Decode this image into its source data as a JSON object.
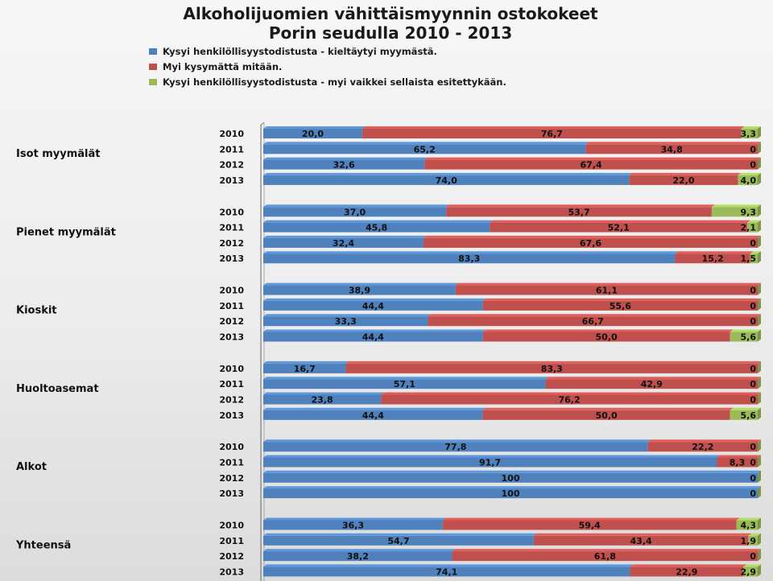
{
  "chart_data": {
    "type": "bar",
    "orientation": "horizontal",
    "stacked": "percent",
    "title_lines": [
      "Alkoholijuomien vähittäismyynnin ostokokeet",
      "Porin seudulla 2010 - 2013"
    ],
    "legend_position": "top",
    "series": [
      {
        "name": "Kysyi henkilöllisyystodistusta - kieltäytyi myymästä.",
        "color": "#4f81bd"
      },
      {
        "name": "Myi kysymättä mitään.",
        "color": "#c0504d"
      },
      {
        "name": "Kysyi henkilöllisyystodistusta - myi vaikkei sellaista esitettykään.",
        "color": "#9bbb59"
      }
    ],
    "groups": [
      {
        "label": "Isot myymälät",
        "rows": [
          {
            "year": "2010",
            "values": [
              20.0,
              76.7,
              3.3
            ],
            "labels": [
              "20,0",
              "76,7",
              "3,3"
            ]
          },
          {
            "year": "2011",
            "values": [
              65.2,
              34.8,
              0
            ],
            "labels": [
              "65,2",
              "34,8",
              "0"
            ]
          },
          {
            "year": "2012",
            "values": [
              32.6,
              67.4,
              0
            ],
            "labels": [
              "32,6",
              "67,4",
              "0"
            ]
          },
          {
            "year": "2013",
            "values": [
              74.0,
              22.0,
              4.0
            ],
            "labels": [
              "74,0",
              "22,0",
              "4,0"
            ]
          }
        ]
      },
      {
        "label": "Pienet myymälät",
        "rows": [
          {
            "year": "2010",
            "values": [
              37.0,
              53.7,
              9.3
            ],
            "labels": [
              "37,0",
              "53,7",
              "9,3"
            ]
          },
          {
            "year": "2011",
            "values": [
              45.8,
              52.1,
              2.1
            ],
            "labels": [
              "45,8",
              "52,1",
              "2,1"
            ]
          },
          {
            "year": "2012",
            "values": [
              32.4,
              67.6,
              0
            ],
            "labels": [
              "32,4",
              "67,6",
              "0"
            ]
          },
          {
            "year": "2013",
            "values": [
              83.3,
              15.2,
              1.5
            ],
            "labels": [
              "83,3",
              "15,2",
              "1,5"
            ]
          }
        ]
      },
      {
        "label": "Kioskit",
        "rows": [
          {
            "year": "2010",
            "values": [
              38.9,
              61.1,
              0
            ],
            "labels": [
              "38,9",
              "61,1",
              "0"
            ]
          },
          {
            "year": "2011",
            "values": [
              44.4,
              55.6,
              0
            ],
            "labels": [
              "44,4",
              "55,6",
              "0"
            ]
          },
          {
            "year": "2012",
            "values": [
              33.3,
              66.7,
              0
            ],
            "labels": [
              "33,3",
              "66,7",
              "0"
            ]
          },
          {
            "year": "2013",
            "values": [
              44.4,
              50.0,
              5.6
            ],
            "labels": [
              "44,4",
              "50,0",
              "5,6"
            ]
          }
        ]
      },
      {
        "label": "Huoltoasemat",
        "rows": [
          {
            "year": "2010",
            "values": [
              16.7,
              83.3,
              0
            ],
            "labels": [
              "16,7",
              "83,3",
              "0"
            ]
          },
          {
            "year": "2011",
            "values": [
              57.1,
              42.9,
              0
            ],
            "labels": [
              "57,1",
              "42,9",
              "0"
            ]
          },
          {
            "year": "2012",
            "values": [
              23.8,
              76.2,
              0
            ],
            "labels": [
              "23,8",
              "76,2",
              "0"
            ]
          },
          {
            "year": "2013",
            "values": [
              44.4,
              50.0,
              5.6
            ],
            "labels": [
              "44,4",
              "50,0",
              "5,6"
            ]
          }
        ]
      },
      {
        "label": "Alkot",
        "rows": [
          {
            "year": "2010",
            "values": [
              77.8,
              22.2,
              0
            ],
            "labels": [
              "77,8",
              "22,2",
              "0"
            ]
          },
          {
            "year": "2011",
            "values": [
              91.7,
              8.3,
              0
            ],
            "labels": [
              "91,7",
              "8,3",
              "0"
            ]
          },
          {
            "year": "2012",
            "values": [
              100,
              0,
              0
            ],
            "labels": [
              "100",
              "",
              "0"
            ]
          },
          {
            "year": "2013",
            "values": [
              100,
              0,
              0
            ],
            "labels": [
              "100",
              "",
              "0"
            ]
          }
        ]
      },
      {
        "label": "Yhteensä",
        "rows": [
          {
            "year": "2010",
            "values": [
              36.3,
              59.4,
              4.3
            ],
            "labels": [
              "36,3",
              "59,4",
              "4,3"
            ]
          },
          {
            "year": "2011",
            "values": [
              54.7,
              43.4,
              1.9
            ],
            "labels": [
              "54,7",
              "43,4",
              "1,9"
            ]
          },
          {
            "year": "2012",
            "values": [
              38.2,
              61.8,
              0
            ],
            "labels": [
              "38,2",
              "61,8",
              "0"
            ]
          },
          {
            "year": "2013",
            "values": [
              74.1,
              22.9,
              2.9
            ],
            "labels": [
              "74,1",
              "22,9",
              "2,9"
            ]
          }
        ]
      }
    ]
  }
}
